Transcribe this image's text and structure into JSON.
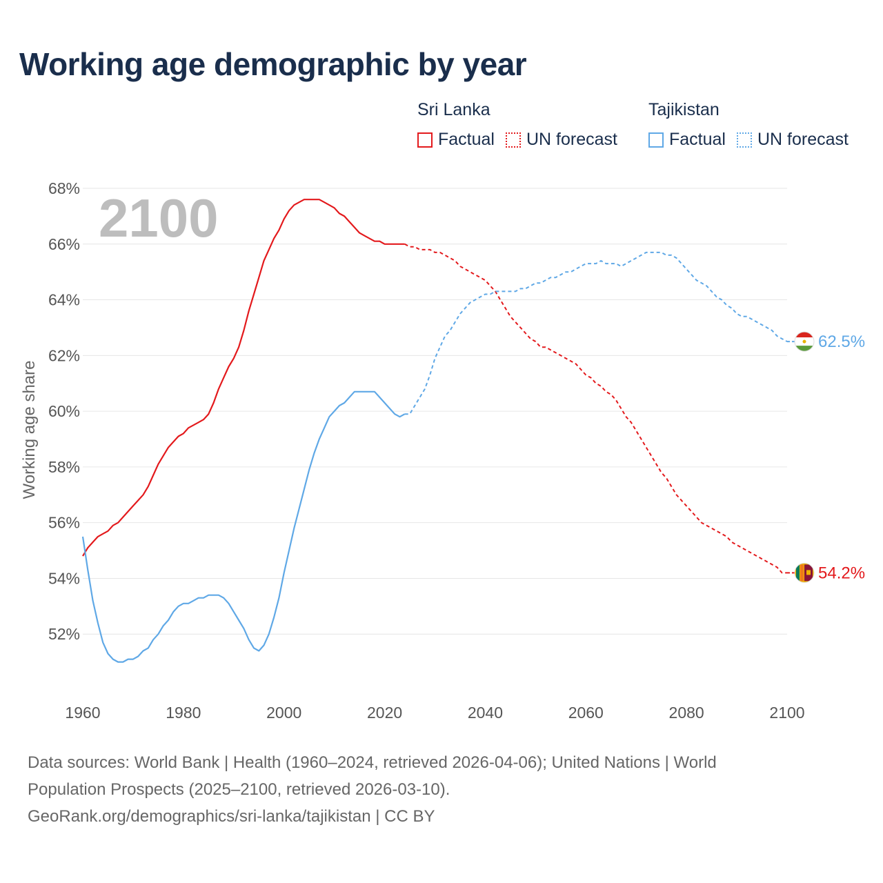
{
  "title": "Working age demographic by year",
  "legend": {
    "groups": [
      {
        "name": "Sri Lanka",
        "factual_label": "Factual",
        "forecast_label": "UN forecast",
        "color": "#e3191c"
      },
      {
        "name": "Tajikistan",
        "factual_label": "Factual",
        "forecast_label": "UN forecast",
        "color": "#5fa8e6"
      }
    ]
  },
  "chart_data": {
    "type": "line",
    "title": "Working age demographic by year",
    "year_label": "2100",
    "xlabel": "",
    "ylabel": "Working age share",
    "xlim": [
      1960,
      2100
    ],
    "ylim": [
      50,
      68
    ],
    "x_ticks": [
      1960,
      1980,
      2000,
      2020,
      2040,
      2060,
      2080,
      2100
    ],
    "y_ticks": [
      52,
      54,
      56,
      58,
      60,
      62,
      64,
      66,
      68
    ],
    "y_tick_labels": [
      "52%",
      "54%",
      "56%",
      "58%",
      "60%",
      "62%",
      "64%",
      "66%",
      "68%"
    ],
    "grid": true,
    "factual_range": [
      1960,
      2024
    ],
    "forecast_range": [
      2024,
      2100
    ],
    "series": [
      {
        "name": "Sri Lanka",
        "color": "#e3191c",
        "end_label": "54.2%",
        "points": [
          [
            1960,
            54.8
          ],
          [
            1961,
            55.1
          ],
          [
            1962,
            55.3
          ],
          [
            1963,
            55.5
          ],
          [
            1964,
            55.6
          ],
          [
            1965,
            55.7
          ],
          [
            1966,
            55.9
          ],
          [
            1967,
            56.0
          ],
          [
            1968,
            56.2
          ],
          [
            1969,
            56.4
          ],
          [
            1970,
            56.6
          ],
          [
            1971,
            56.8
          ],
          [
            1972,
            57.0
          ],
          [
            1973,
            57.3
          ],
          [
            1974,
            57.7
          ],
          [
            1975,
            58.1
          ],
          [
            1976,
            58.4
          ],
          [
            1977,
            58.7
          ],
          [
            1978,
            58.9
          ],
          [
            1979,
            59.1
          ],
          [
            1980,
            59.2
          ],
          [
            1981,
            59.4
          ],
          [
            1982,
            59.5
          ],
          [
            1983,
            59.6
          ],
          [
            1984,
            59.7
          ],
          [
            1985,
            59.9
          ],
          [
            1986,
            60.3
          ],
          [
            1987,
            60.8
          ],
          [
            1988,
            61.2
          ],
          [
            1989,
            61.6
          ],
          [
            1990,
            61.9
          ],
          [
            1991,
            62.3
          ],
          [
            1992,
            62.9
          ],
          [
            1993,
            63.6
          ],
          [
            1994,
            64.2
          ],
          [
            1995,
            64.8
          ],
          [
            1996,
            65.4
          ],
          [
            1997,
            65.8
          ],
          [
            1998,
            66.2
          ],
          [
            1999,
            66.5
          ],
          [
            2000,
            66.9
          ],
          [
            2001,
            67.2
          ],
          [
            2002,
            67.4
          ],
          [
            2003,
            67.5
          ],
          [
            2004,
            67.6
          ],
          [
            2005,
            67.6
          ],
          [
            2006,
            67.6
          ],
          [
            2007,
            67.6
          ],
          [
            2008,
            67.5
          ],
          [
            2009,
            67.4
          ],
          [
            2010,
            67.3
          ],
          [
            2011,
            67.1
          ],
          [
            2012,
            67.0
          ],
          [
            2013,
            66.8
          ],
          [
            2014,
            66.6
          ],
          [
            2015,
            66.4
          ],
          [
            2016,
            66.3
          ],
          [
            2017,
            66.2
          ],
          [
            2018,
            66.1
          ],
          [
            2019,
            66.1
          ],
          [
            2020,
            66.0
          ],
          [
            2021,
            66.0
          ],
          [
            2022,
            66.0
          ],
          [
            2023,
            66.0
          ],
          [
            2024,
            66.0
          ],
          [
            2025,
            65.9
          ],
          [
            2026,
            65.9
          ],
          [
            2027,
            65.8
          ],
          [
            2028,
            65.8
          ],
          [
            2029,
            65.8
          ],
          [
            2030,
            65.7
          ],
          [
            2031,
            65.7
          ],
          [
            2032,
            65.6
          ],
          [
            2033,
            65.5
          ],
          [
            2034,
            65.4
          ],
          [
            2035,
            65.2
          ],
          [
            2036,
            65.1
          ],
          [
            2037,
            65.0
          ],
          [
            2038,
            64.9
          ],
          [
            2039,
            64.8
          ],
          [
            2040,
            64.7
          ],
          [
            2041,
            64.5
          ],
          [
            2042,
            64.3
          ],
          [
            2043,
            64.0
          ],
          [
            2044,
            63.7
          ],
          [
            2045,
            63.4
          ],
          [
            2046,
            63.2
          ],
          [
            2047,
            63.0
          ],
          [
            2048,
            62.8
          ],
          [
            2049,
            62.6
          ],
          [
            2050,
            62.5
          ],
          [
            2051,
            62.3
          ],
          [
            2052,
            62.3
          ],
          [
            2053,
            62.2
          ],
          [
            2054,
            62.1
          ],
          [
            2055,
            62.0
          ],
          [
            2056,
            61.9
          ],
          [
            2057,
            61.8
          ],
          [
            2058,
            61.7
          ],
          [
            2059,
            61.5
          ],
          [
            2060,
            61.3
          ],
          [
            2061,
            61.2
          ],
          [
            2062,
            61.0
          ],
          [
            2063,
            60.9
          ],
          [
            2064,
            60.7
          ],
          [
            2065,
            60.6
          ],
          [
            2066,
            60.4
          ],
          [
            2067,
            60.1
          ],
          [
            2068,
            59.8
          ],
          [
            2069,
            59.6
          ],
          [
            2070,
            59.3
          ],
          [
            2071,
            59.0
          ],
          [
            2072,
            58.7
          ],
          [
            2073,
            58.4
          ],
          [
            2074,
            58.1
          ],
          [
            2075,
            57.8
          ],
          [
            2076,
            57.6
          ],
          [
            2077,
            57.3
          ],
          [
            2078,
            57.0
          ],
          [
            2079,
            56.8
          ],
          [
            2080,
            56.6
          ],
          [
            2081,
            56.4
          ],
          [
            2082,
            56.2
          ],
          [
            2083,
            56.0
          ],
          [
            2084,
            55.9
          ],
          [
            2085,
            55.8
          ],
          [
            2086,
            55.7
          ],
          [
            2087,
            55.6
          ],
          [
            2088,
            55.5
          ],
          [
            2089,
            55.3
          ],
          [
            2090,
            55.2
          ],
          [
            2091,
            55.1
          ],
          [
            2092,
            55.0
          ],
          [
            2093,
            54.9
          ],
          [
            2094,
            54.8
          ],
          [
            2095,
            54.7
          ],
          [
            2096,
            54.6
          ],
          [
            2097,
            54.5
          ],
          [
            2098,
            54.4
          ],
          [
            2099,
            54.2
          ],
          [
            2100,
            54.2
          ]
        ]
      },
      {
        "name": "Tajikistan",
        "color": "#5fa8e6",
        "end_label": "62.5%",
        "points": [
          [
            1960,
            55.5
          ],
          [
            1961,
            54.3
          ],
          [
            1962,
            53.2
          ],
          [
            1963,
            52.4
          ],
          [
            1964,
            51.7
          ],
          [
            1965,
            51.3
          ],
          [
            1966,
            51.1
          ],
          [
            1967,
            51.0
          ],
          [
            1968,
            51.0
          ],
          [
            1969,
            51.1
          ],
          [
            1970,
            51.1
          ],
          [
            1971,
            51.2
          ],
          [
            1972,
            51.4
          ],
          [
            1973,
            51.5
          ],
          [
            1974,
            51.8
          ],
          [
            1975,
            52.0
          ],
          [
            1976,
            52.3
          ],
          [
            1977,
            52.5
          ],
          [
            1978,
            52.8
          ],
          [
            1979,
            53.0
          ],
          [
            1980,
            53.1
          ],
          [
            1981,
            53.1
          ],
          [
            1982,
            53.2
          ],
          [
            1983,
            53.3
          ],
          [
            1984,
            53.3
          ],
          [
            1985,
            53.4
          ],
          [
            1986,
            53.4
          ],
          [
            1987,
            53.4
          ],
          [
            1988,
            53.3
          ],
          [
            1989,
            53.1
          ],
          [
            1990,
            52.8
          ],
          [
            1991,
            52.5
          ],
          [
            1992,
            52.2
          ],
          [
            1993,
            51.8
          ],
          [
            1994,
            51.5
          ],
          [
            1995,
            51.4
          ],
          [
            1996,
            51.6
          ],
          [
            1997,
            52.0
          ],
          [
            1998,
            52.6
          ],
          [
            1999,
            53.3
          ],
          [
            2000,
            54.2
          ],
          [
            2001,
            55.0
          ],
          [
            2002,
            55.8
          ],
          [
            2003,
            56.5
          ],
          [
            2004,
            57.2
          ],
          [
            2005,
            57.9
          ],
          [
            2006,
            58.5
          ],
          [
            2007,
            59.0
          ],
          [
            2008,
            59.4
          ],
          [
            2009,
            59.8
          ],
          [
            2010,
            60.0
          ],
          [
            2011,
            60.2
          ],
          [
            2012,
            60.3
          ],
          [
            2013,
            60.5
          ],
          [
            2014,
            60.7
          ],
          [
            2015,
            60.7
          ],
          [
            2016,
            60.7
          ],
          [
            2017,
            60.7
          ],
          [
            2018,
            60.7
          ],
          [
            2019,
            60.5
          ],
          [
            2020,
            60.3
          ],
          [
            2021,
            60.1
          ],
          [
            2022,
            59.9
          ],
          [
            2023,
            59.8
          ],
          [
            2024,
            59.9
          ],
          [
            2025,
            59.9
          ],
          [
            2026,
            60.2
          ],
          [
            2027,
            60.5
          ],
          [
            2028,
            60.8
          ],
          [
            2029,
            61.3
          ],
          [
            2030,
            61.9
          ],
          [
            2031,
            62.3
          ],
          [
            2032,
            62.7
          ],
          [
            2033,
            62.9
          ],
          [
            2034,
            63.2
          ],
          [
            2035,
            63.5
          ],
          [
            2036,
            63.7
          ],
          [
            2037,
            63.9
          ],
          [
            2038,
            64.0
          ],
          [
            2039,
            64.1
          ],
          [
            2040,
            64.2
          ],
          [
            2041,
            64.2
          ],
          [
            2042,
            64.3
          ],
          [
            2043,
            64.3
          ],
          [
            2044,
            64.3
          ],
          [
            2045,
            64.3
          ],
          [
            2046,
            64.3
          ],
          [
            2047,
            64.4
          ],
          [
            2048,
            64.4
          ],
          [
            2049,
            64.5
          ],
          [
            2050,
            64.6
          ],
          [
            2051,
            64.6
          ],
          [
            2052,
            64.7
          ],
          [
            2053,
            64.8
          ],
          [
            2054,
            64.8
          ],
          [
            2055,
            64.9
          ],
          [
            2056,
            65.0
          ],
          [
            2057,
            65.0
          ],
          [
            2058,
            65.1
          ],
          [
            2059,
            65.2
          ],
          [
            2060,
            65.3
          ],
          [
            2061,
            65.3
          ],
          [
            2062,
            65.3
          ],
          [
            2063,
            65.4
          ],
          [
            2064,
            65.3
          ],
          [
            2065,
            65.3
          ],
          [
            2066,
            65.3
          ],
          [
            2067,
            65.2
          ],
          [
            2068,
            65.3
          ],
          [
            2069,
            65.4
          ],
          [
            2070,
            65.5
          ],
          [
            2071,
            65.6
          ],
          [
            2072,
            65.7
          ],
          [
            2073,
            65.7
          ],
          [
            2074,
            65.7
          ],
          [
            2075,
            65.7
          ],
          [
            2076,
            65.6
          ],
          [
            2077,
            65.6
          ],
          [
            2078,
            65.5
          ],
          [
            2079,
            65.3
          ],
          [
            2080,
            65.1
          ],
          [
            2081,
            64.9
          ],
          [
            2082,
            64.7
          ],
          [
            2083,
            64.6
          ],
          [
            2084,
            64.5
          ],
          [
            2085,
            64.3
          ],
          [
            2086,
            64.1
          ],
          [
            2087,
            64.0
          ],
          [
            2088,
            63.8
          ],
          [
            2089,
            63.7
          ],
          [
            2090,
            63.5
          ],
          [
            2091,
            63.4
          ],
          [
            2092,
            63.4
          ],
          [
            2093,
            63.3
          ],
          [
            2094,
            63.2
          ],
          [
            2095,
            63.1
          ],
          [
            2096,
            63.0
          ],
          [
            2097,
            62.9
          ],
          [
            2098,
            62.7
          ],
          [
            2099,
            62.6
          ],
          [
            2100,
            62.5
          ]
        ]
      }
    ]
  },
  "footer": {
    "line1": "Data sources: World Bank | Health (1960–2024, retrieved 2026-04-06); United Nations | World",
    "line2": "Population Prospects (2025–2100, retrieved 2026-03-10).",
    "line3": "GeoRank.org/demographics/sri-lanka/tajikistan | CC BY"
  }
}
